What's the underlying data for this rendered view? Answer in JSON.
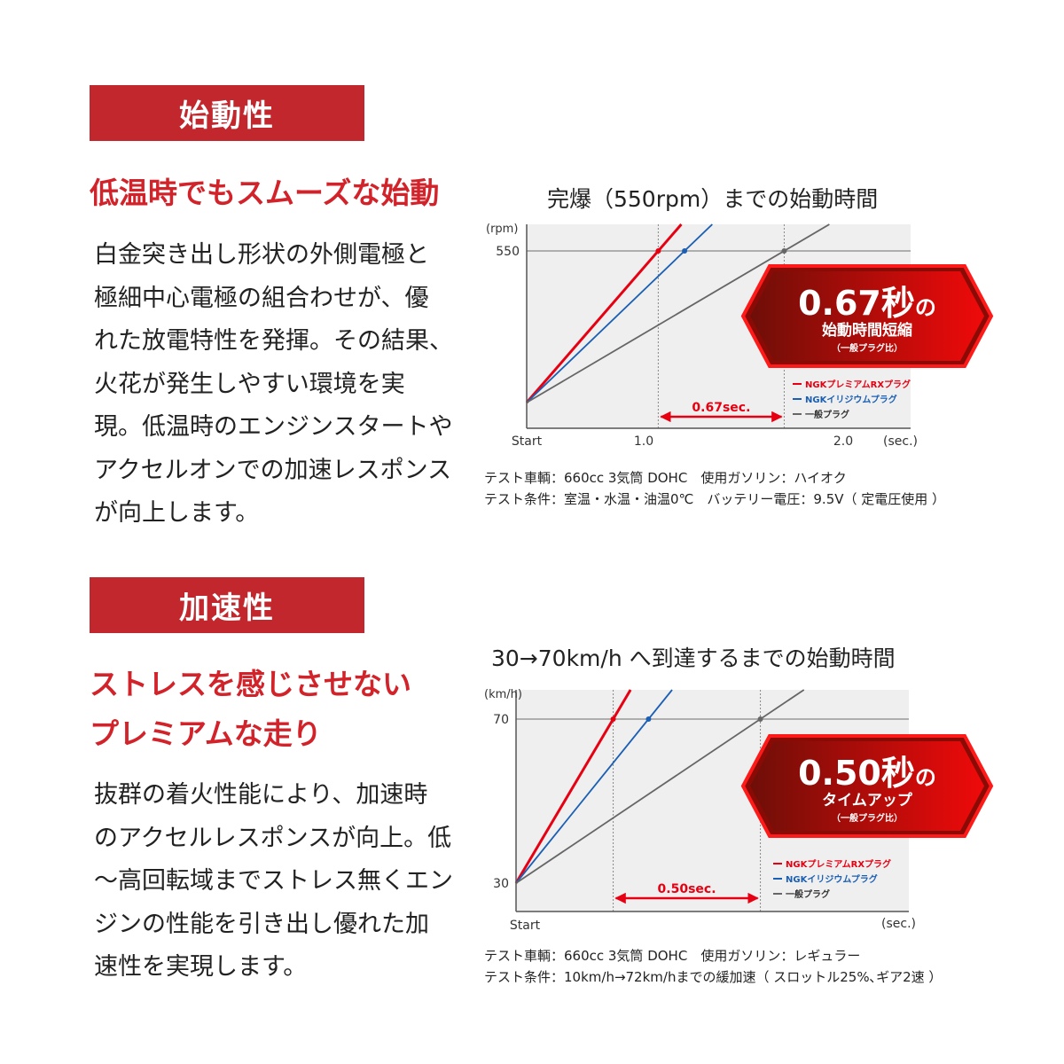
{
  "sections": [
    {
      "header": "始動性",
      "subtitle": "低温時でもスムーズな始動",
      "body": "白金突き出し形状の外側電極と\n極細中心電極の組合わせが、優\nれた放電特性を発揮。その結果、\n火花が発生しやすい環境を実\n現。低温時のエンジンスタートや\nアクセルオンでの加速レスポンス\nが向上します。"
    },
    {
      "header": "加速性",
      "subtitle": "ストレスを感じさせない\nプレミアムな走り",
      "body": "抜群の着火性能により、加速時\nのアクセルレスポンスが向上。低\n〜高回転域までストレス無くエン\nジンの性能を引き出し優れた加\n速性を実現します。"
    }
  ],
  "colors": {
    "accent": "#c1272d",
    "red_series": "#e60012",
    "blue_series": "#1a5fb4",
    "gray_series": "#666666",
    "plot_bg": "#efefef"
  },
  "chart_data": [
    {
      "type": "line",
      "title": "完爆（550rpm）までの始動時間",
      "ylabel": "(rpm)",
      "xlabel": "(sec.)",
      "x_ticks": [
        "Start",
        "1.0",
        "2.0"
      ],
      "y_ticks": [
        "550"
      ],
      "series": [
        {
          "name": "NGKプレミアムRXプラグ",
          "x_at_target": 1.07
        },
        {
          "name": "NGKイリジウムプラグ",
          "x_at_target": 1.21
        },
        {
          "name": "一般プラグ",
          "x_at_target": 1.74
        }
      ],
      "target_y": 550,
      "difference_label": "0.67sec.",
      "badge": {
        "big": "0.67秒",
        "no": "の",
        "line2": "始動時間短縮",
        "line3": "（一般プラグ比）"
      },
      "notes": "テスト車輌：660cc 3気筒 DOHC　使用ガソリン：ハイオク\nテスト条件：室温・水温・油温0℃　バッテリー電圧：9.5V（ 定電圧使用 ）"
    },
    {
      "type": "line",
      "title": "30→70km/h へ到達するまでの始動時間",
      "ylabel": "(km/h)",
      "xlabel": "(sec.)",
      "x_ticks": [
        "Start"
      ],
      "y_ticks": [
        "70",
        "30"
      ],
      "series": [
        {
          "name": "NGKプレミアムRXプラグ",
          "x_at_target": 0.33
        },
        {
          "name": "NGKイリジウムプラグ",
          "x_at_target": 0.45
        },
        {
          "name": "一般プラグ",
          "x_at_target": 0.83
        }
      ],
      "y_start": 30,
      "target_y": 70,
      "difference_label": "0.50sec.",
      "badge": {
        "big": "0.50秒",
        "no": "の",
        "line2": "タイムアップ",
        "line3": "（一般プラグ比）"
      },
      "notes": "テスト車輌：660cc 3気筒 DOHC　使用ガソリン：レギュラー\nテスト条件：10km/h→72km/hまでの緩加速（ スロットル25%､ギア2速 ）"
    }
  ]
}
